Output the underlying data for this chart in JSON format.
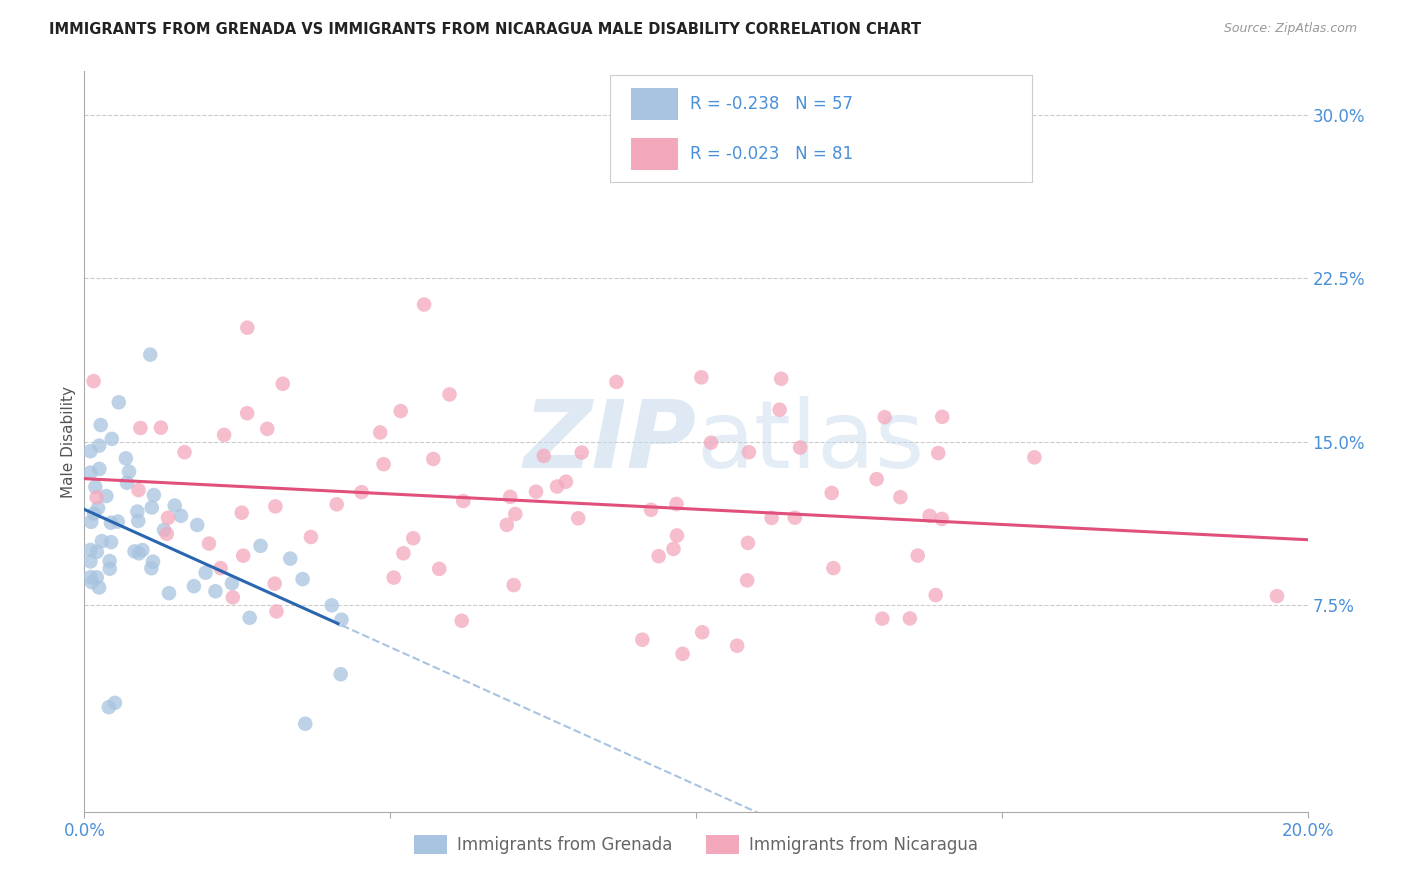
{
  "title": "IMMIGRANTS FROM GRENADA VS IMMIGRANTS FROM NICARAGUA MALE DISABILITY CORRELATION CHART",
  "source": "Source: ZipAtlas.com",
  "ylabel": "Male Disability",
  "xlim": [
    0.0,
    0.2
  ],
  "ylim": [
    -0.02,
    0.32
  ],
  "yticks": [
    0.075,
    0.15,
    0.225,
    0.3
  ],
  "ytick_labels": [
    "7.5%",
    "15.0%",
    "22.5%",
    "30.0%"
  ],
  "xticks": [
    0.0,
    0.05,
    0.1,
    0.15,
    0.2
  ],
  "xtick_labels": [
    "0.0%",
    "",
    "",
    "",
    "20.0%"
  ],
  "color_grenada": "#a8c4e0",
  "color_grenada_line": "#2a65b0",
  "color_nicaragua": "#f4a8bc",
  "color_nicaragua_line": "#e0507a",
  "color_dashed": "#a8c4e0",
  "watermark_color": "#c8d8e8",
  "background_color": "#ffffff",
  "title_color": "#222222",
  "axis_label_color": "#4a90d9",
  "grid_color": "#cccccc",
  "legend_text_color": "#4a90d9",
  "legend_label_color": "#333333",
  "bottom_legend_color": "#666666"
}
